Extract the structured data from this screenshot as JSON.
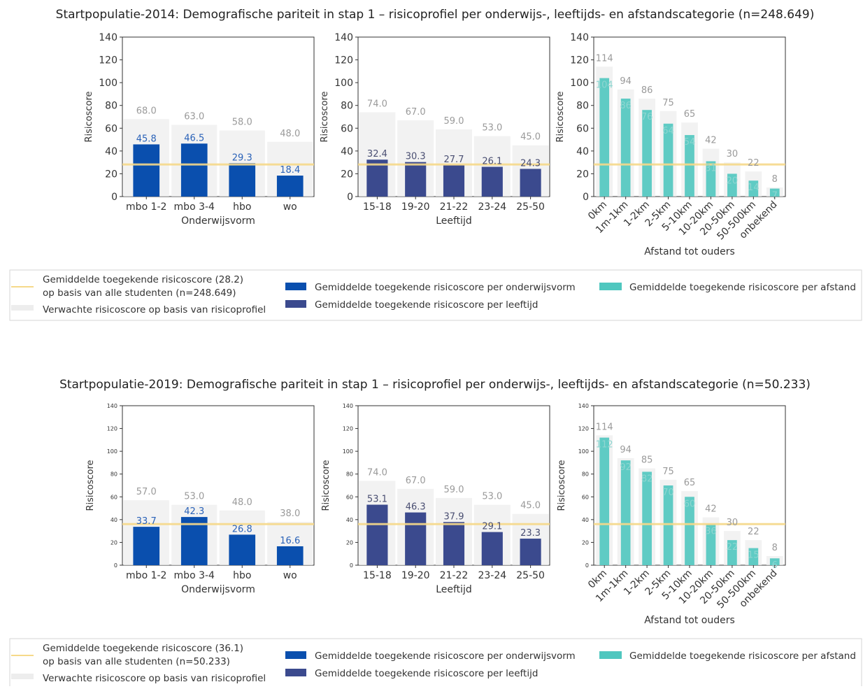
{
  "colors": {
    "onderwijs": "#0a4fae",
    "leeftijd": "#3b4a8e",
    "afstand": "#4fc7bf",
    "expected": "#ededed",
    "mean_line": "#f6d98a",
    "label_blue": "#2a62b8",
    "label_teal": "#8fd6d1",
    "label_grey": "#9a9a9a"
  },
  "chart_data": [
    {
      "type": "bar",
      "title": "Startpopulatie-2014: Demografische pariteit in stap 1 – risicoprofiel per onderwijs-, leeftijds- en afstandscategorie (n=248.649)",
      "mean_score": 28.2,
      "ylim": [
        0,
        140
      ],
      "yticks": [
        "0",
        "20",
        "40",
        "60",
        "80",
        "100",
        "120",
        "140"
      ],
      "panels": [
        {
          "key": "onderwijs",
          "ylabel": "Risicoscore",
          "xlabel": "Onderwijsvorm",
          "categories": [
            "mbo 1-2",
            "mbo 3-4",
            "hbo",
            "wo"
          ],
          "series": [
            {
              "name": "Gemiddelde toegekende risicoscore per onderwijsvorm",
              "values": [
                45.8,
                46.5,
                29.3,
                18.4
              ],
              "labels": [
                "45.8",
                "46.5",
                "29.3",
                "18.4"
              ]
            },
            {
              "name": "Verwachte risicoscore op basis van risicoprofiel",
              "values": [
                68.0,
                63.0,
                58.0,
                48.0
              ],
              "labels": [
                "68.0",
                "63.0",
                "58.0",
                "48.0"
              ]
            }
          ]
        },
        {
          "key": "leeftijd",
          "ylabel": "Risicoscore",
          "xlabel": "Leeftijd",
          "categories": [
            "15-18",
            "19-20",
            "21-22",
            "23-24",
            "25-50"
          ],
          "series": [
            {
              "name": "Gemiddelde toegekende risicoscore per leeftijd",
              "values": [
                32.4,
                30.3,
                27.7,
                26.1,
                24.3
              ],
              "labels": [
                "32.4",
                "30.3",
                "27.7",
                "26.1",
                "24.3"
              ]
            },
            {
              "name": "Verwachte risicoscore op basis van risicoprofiel",
              "values": [
                74.0,
                67.0,
                59.0,
                53.0,
                45.0
              ],
              "labels": [
                "74.0",
                "67.0",
                "59.0",
                "53.0",
                "45.0"
              ]
            }
          ]
        },
        {
          "key": "afstand",
          "ylabel": "Risicoscore",
          "xlabel": "Afstand tot ouders",
          "categories": [
            "0km",
            "1m-1km",
            "1-2km",
            "2-5km",
            "5-10km",
            "10-20km",
            "20-50km",
            "50-500km",
            "onbekend"
          ],
          "series": [
            {
              "name": "Gemiddelde toegekende risicoscore per afstand",
              "values": [
                104,
                86,
                76,
                64,
                54,
                31,
                20,
                14,
                7
              ],
              "labels": [
                "104",
                "86",
                "76",
                "64",
                "54",
                "31",
                "20",
                "14",
                "7"
              ]
            },
            {
              "name": "Verwachte risicoscore op basis van risicoprofiel",
              "values": [
                114,
                94,
                86,
                75,
                65,
                42,
                30,
                22,
                8
              ],
              "labels": [
                "114",
                "94",
                "86",
                "75",
                "65",
                "42",
                "30",
                "22",
                "8"
              ]
            }
          ]
        }
      ],
      "legend": {
        "mean_line": "Gemiddelde toegekende risicoscore (28.2)",
        "mean_line_2": "op basis van alle studenten (n=248.649)",
        "expected": "Verwachte risicoscore op basis van risicoprofiel",
        "onderwijs": "Gemiddelde toegekende risicoscore per onderwijsvorm",
        "leeftijd": "Gemiddelde toegekende risicoscore per leeftijd",
        "afstand": "Gemiddelde toegekende risicoscore per afstand"
      }
    },
    {
      "type": "bar",
      "title": "Startpopulatie-2019: Demografische pariteit in stap 1 – risicoprofiel per onderwijs-, leeftijds- en afstandscategorie (n=50.233)",
      "mean_score": 36.1,
      "ylim": [
        0,
        140
      ],
      "yticks": [
        "0",
        "20",
        "40",
        "60",
        "80",
        "100",
        "120",
        "140"
      ],
      "panels": [
        {
          "key": "onderwijs",
          "ylabel": "Risicoscore",
          "xlabel": "Onderwijsvorm",
          "categories": [
            "mbo 1-2",
            "mbo 3-4",
            "hbo",
            "wo"
          ],
          "series": [
            {
              "name": "Gemiddelde toegekende risicoscore per onderwijsvorm",
              "values": [
                33.7,
                42.3,
                26.8,
                16.6
              ],
              "labels": [
                "33.7",
                "42.3",
                "26.8",
                "16.6"
              ]
            },
            {
              "name": "Verwachte risicoscore op basis van risicoprofiel",
              "values": [
                57.0,
                53.0,
                48.0,
                38.0
              ],
              "labels": [
                "57.0",
                "53.0",
                "48.0",
                "38.0"
              ]
            }
          ]
        },
        {
          "key": "leeftijd",
          "ylabel": "Risicoscore",
          "xlabel": "Leeftijd",
          "categories": [
            "15-18",
            "19-20",
            "21-22",
            "23-24",
            "25-50"
          ],
          "series": [
            {
              "name": "Gemiddelde toegekende risicoscore per leeftijd",
              "values": [
                53.1,
                46.3,
                37.9,
                29.1,
                23.3
              ],
              "labels": [
                "53.1",
                "46.3",
                "37.9",
                "29.1",
                "23.3"
              ]
            },
            {
              "name": "Verwachte risicoscore op basis van risicoprofiel",
              "values": [
                74.0,
                67.0,
                59.0,
                53.0,
                45.0
              ],
              "labels": [
                "74.0",
                "67.0",
                "59.0",
                "53.0",
                "45.0"
              ]
            }
          ]
        },
        {
          "key": "afstand",
          "ylabel": "Risicoscore",
          "xlabel": "Afstand tot ouders",
          "categories": [
            "0km",
            "1m-1km",
            "1-2km",
            "2-5km",
            "5-10km",
            "10-20km",
            "20-50km",
            "50-500km",
            "onbekend"
          ],
          "series": [
            {
              "name": "Gemiddelde toegekende risicoscore per afstand",
              "values": [
                112,
                92,
                82,
                70,
                60,
                36,
                22,
                15,
                6
              ],
              "labels": [
                "112",
                "92",
                "82",
                "70",
                "60",
                "36",
                "22",
                "15",
                "6"
              ]
            },
            {
              "name": "Verwachte risicoscore op basis van risicoprofiel",
              "values": [
                114,
                94,
                85,
                75,
                65,
                42,
                30,
                22,
                8
              ],
              "labels": [
                "114",
                "94",
                "85",
                "75",
                "65",
                "42",
                "30",
                "22",
                "8"
              ]
            }
          ]
        }
      ],
      "legend": {
        "mean_line": "Gemiddelde toegekende risicoscore (36.1)",
        "mean_line_2": "op basis van alle studenten (n=50.233)",
        "expected": "Verwachte risicoscore op basis van risicoprofiel",
        "onderwijs": "Gemiddelde toegekende risicoscore per onderwijsvorm",
        "leeftijd": "Gemiddelde toegekende risicoscore per leeftijd",
        "afstand": "Gemiddelde toegekende risicoscore per afstand"
      }
    }
  ]
}
